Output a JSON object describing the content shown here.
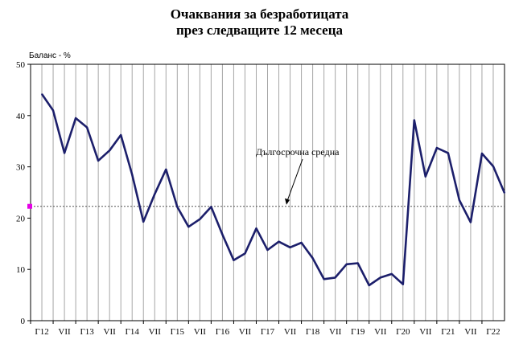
{
  "title_line1": "Очаквания за безработицата",
  "title_line2": "през следващите 12 месеца",
  "chart_data": {
    "type": "line",
    "ylabel": "Баланс - %",
    "ylim": [
      0,
      50
    ],
    "yticks": [
      0,
      10,
      20,
      30,
      40,
      50
    ],
    "xtick_labels": [
      "Г12",
      "VII",
      "Г13",
      "VII",
      "Г14",
      "VII",
      "Г15",
      "VII",
      "Г16",
      "VII",
      "Г17",
      "VII",
      "Г18",
      "VII",
      "Г19",
      "VII",
      "Г20",
      "VII",
      "Г21",
      "VII",
      "Г22"
    ],
    "grid": "vertical",
    "series": [
      {
        "color": "#1c1f6b",
        "values": [
          44.2,
          41.0,
          32.7,
          39.5,
          37.7,
          31.2,
          33.2,
          36.2,
          28.5,
          19.3,
          24.7,
          29.5,
          22.2,
          18.3,
          19.8,
          22.2,
          16.8,
          11.8,
          13.1,
          18.0,
          13.8,
          15.4,
          14.3,
          15.2,
          12.2,
          8.1,
          8.4,
          11.0,
          11.2,
          6.9,
          8.4,
          9.1,
          7.1,
          39.1,
          28.1,
          33.7,
          32.7,
          23.5,
          19.2,
          32.6,
          30.1,
          24.9
        ]
      }
    ],
    "reference_line": {
      "label": "Дългосрочна средна",
      "value": 22.3,
      "color": "#555555",
      "marker_color": "#e600e6"
    }
  }
}
